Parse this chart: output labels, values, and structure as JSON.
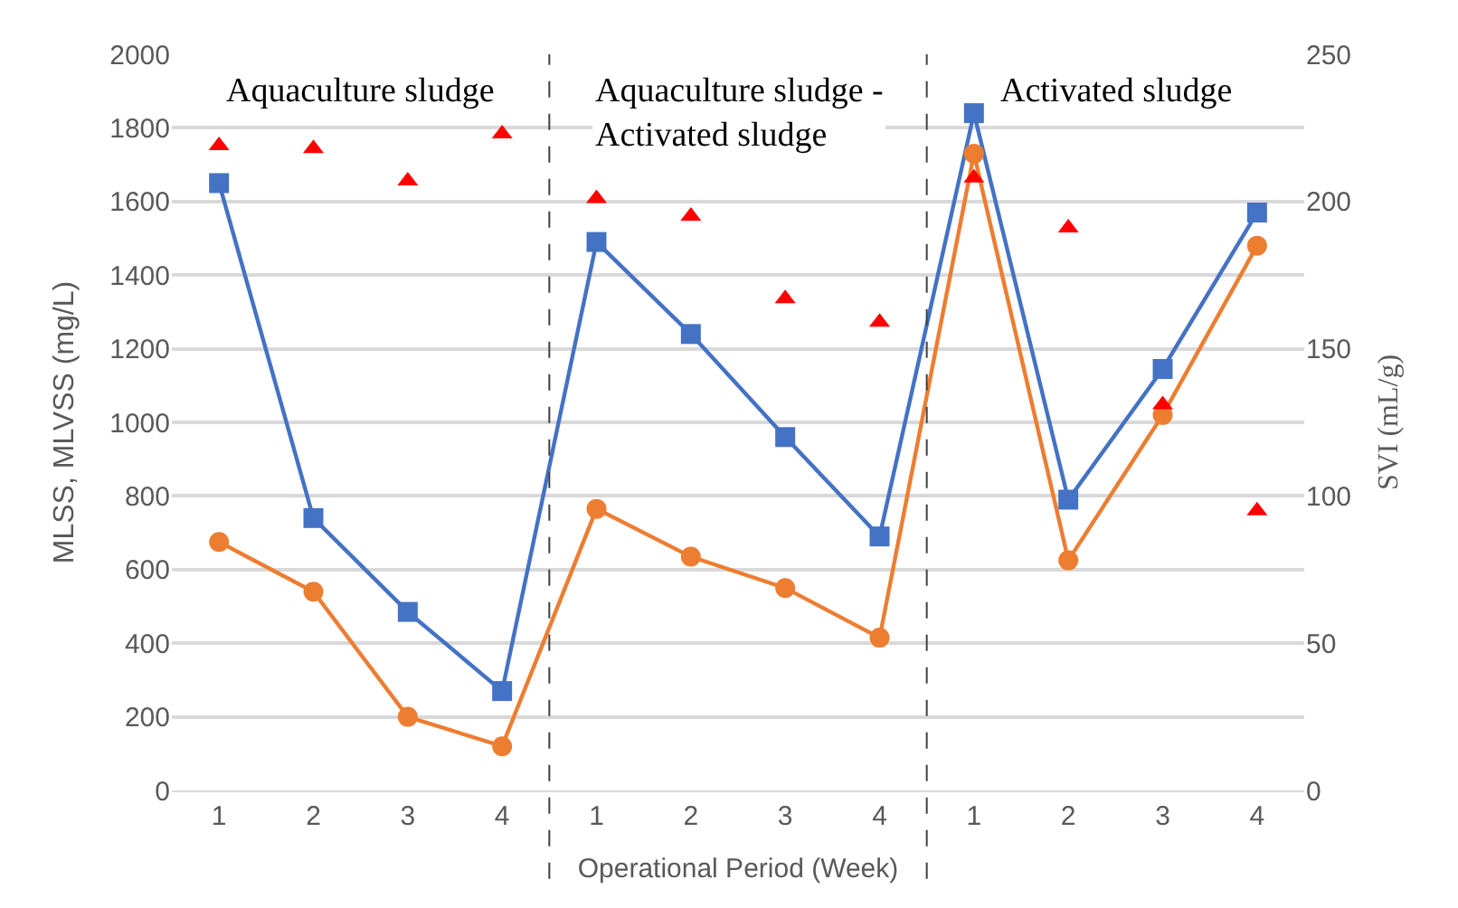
{
  "chart_data": {
    "type": "line",
    "xlabel": "Operational Period (Week)",
    "ylabel": "MLSS, MLVSS (mg/L)",
    "y2label": "SVI (mL/g)",
    "categories": [
      "1",
      "2",
      "3",
      "4",
      "1",
      "2",
      "3",
      "4",
      "1",
      "2",
      "3",
      "4"
    ],
    "ylim": [
      0,
      2000
    ],
    "yticks": [
      0,
      200,
      400,
      600,
      800,
      1000,
      1200,
      1400,
      1600,
      1800,
      2000
    ],
    "y2lim": [
      0,
      250
    ],
    "y2ticks": [
      0,
      50,
      100,
      150,
      200,
      250
    ],
    "series": [
      {
        "color": "#4472c4",
        "marker": "square",
        "values": [
          1650,
          740,
          485,
          270,
          1490,
          1240,
          960,
          690,
          1840,
          790,
          1145,
          1570
        ]
      },
      {
        "color": "#ed7d31",
        "marker": "circle",
        "values": [
          675,
          540,
          200,
          120,
          765,
          635,
          550,
          415,
          1730,
          625,
          1020,
          1480
        ]
      },
      {
        "type": "scatter",
        "color": "#ff0000",
        "marker": "triangle",
        "axis": "y2",
        "values": [
          219,
          218,
          207,
          223,
          201,
          195,
          167,
          159,
          208,
          191,
          131,
          95
        ]
      }
    ],
    "ref_lines": [
      {
        "axis": "x",
        "color": "#404040",
        "line_style": "dashed"
      },
      {
        "axis": "x",
        "color": "#404040",
        "line_style": "dashed"
      }
    ],
    "annotations": [
      "Aquaculture sludge",
      "Aquaculture sludge - Activated sludge",
      "Activated sludge"
    ],
    "grid": "y",
    "legend": false
  }
}
